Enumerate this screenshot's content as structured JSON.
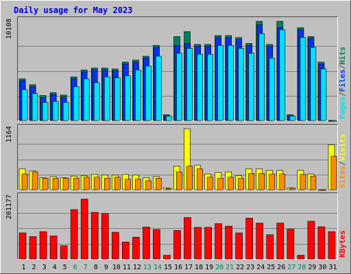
{
  "title": "Daily usage for May 2023",
  "colors": {
    "background": "#c0c0c0",
    "panel": "#c0c0c0",
    "grid": "#7f7f7f",
    "title": "#0000cc",
    "hits": "#00805c",
    "files": "#0040ff",
    "pages": "#00e0ff",
    "visits": "#ffff00",
    "sites": "#ff8c00",
    "kbytes": "#ff0000",
    "weekend_label": "#00805c",
    "weekday_label": "#000000"
  },
  "chart_data": [
    {
      "type": "bar",
      "name": "hits-files-pages",
      "ymax_label": "10108",
      "ylim": [
        0,
        10108
      ],
      "legend": [
        "Pages",
        "/",
        "Files",
        "/",
        "Hits"
      ],
      "categories": [
        "1",
        "2",
        "3",
        "4",
        "5",
        "6",
        "7",
        "8",
        "9",
        "10",
        "11",
        "12",
        "13",
        "14",
        "15",
        "16",
        "17",
        "18",
        "19",
        "20",
        "21",
        "22",
        "23",
        "24",
        "25",
        "26",
        "27",
        "28",
        "29",
        "30",
        "31"
      ],
      "weekend_days": [
        "6",
        "7",
        "13",
        "14",
        "20",
        "21",
        "27",
        "28"
      ],
      "series": [
        {
          "name": "Hits",
          "values": [
            4250,
            3650,
            2550,
            2850,
            2600,
            4450,
            5150,
            5350,
            5350,
            5250,
            5950,
            6150,
            6550,
            7650,
            600,
            8550,
            9050,
            7750,
            7750,
            8650,
            8650,
            8450,
            7850,
            10108,
            7750,
            10108,
            600,
            9450,
            8550,
            5950,
            1
          ]
        },
        {
          "name": "Files",
          "values": [
            4050,
            3450,
            2350,
            2650,
            2400,
            4250,
            4950,
            5150,
            5150,
            5050,
            5750,
            5950,
            6350,
            7450,
            450,
            7650,
            7850,
            7550,
            7550,
            8450,
            8450,
            8250,
            7650,
            9750,
            7550,
            9450,
            450,
            9250,
            8350,
            5750,
            1
          ]
        },
        {
          "name": "Pages",
          "values": [
            3150,
            2750,
            1850,
            1950,
            1850,
            3450,
            4250,
            3850,
            4450,
            4350,
            4550,
            5150,
            5550,
            6550,
            450,
            6850,
            7350,
            6750,
            6750,
            7650,
            7650,
            7350,
            6850,
            8850,
            6350,
            9250,
            450,
            8450,
            7450,
            5250,
            1
          ]
        }
      ]
    },
    {
      "type": "bar",
      "name": "visits-sites",
      "ymax_label": "1164",
      "ylim": [
        0,
        1164
      ],
      "legend": [
        "Sites",
        "/",
        "Visits"
      ],
      "categories": [
        "1",
        "2",
        "3",
        "4",
        "5",
        "6",
        "7",
        "8",
        "9",
        "10",
        "11",
        "12",
        "13",
        "14",
        "15",
        "16",
        "17",
        "18",
        "19",
        "20",
        "21",
        "22",
        "23",
        "24",
        "25",
        "26",
        "27",
        "28",
        "29",
        "30",
        "31"
      ],
      "series": [
        {
          "name": "Visits",
          "values": [
            400,
            360,
            230,
            250,
            230,
            260,
            270,
            290,
            280,
            280,
            290,
            280,
            230,
            250,
            35,
            450,
            1164,
            470,
            300,
            330,
            340,
            270,
            400,
            400,
            370,
            370,
            35,
            370,
            300,
            1,
            860
          ]
        },
        {
          "name": "Sites",
          "values": [
            300,
            340,
            220,
            220,
            220,
            220,
            240,
            240,
            220,
            240,
            200,
            200,
            170,
            220,
            25,
            340,
            450,
            400,
            240,
            220,
            240,
            220,
            310,
            310,
            300,
            300,
            30,
            290,
            260,
            1,
            640
          ]
        }
      ]
    },
    {
      "type": "bar",
      "name": "kbytes",
      "ymax_label": "201177",
      "ylim": [
        0,
        201177
      ],
      "legend": [
        "KBytes"
      ],
      "categories": [
        "1",
        "2",
        "3",
        "4",
        "5",
        "6",
        "7",
        "8",
        "9",
        "10",
        "11",
        "12",
        "13",
        "14",
        "15",
        "16",
        "17",
        "18",
        "19",
        "20",
        "21",
        "22",
        "23",
        "24",
        "25",
        "26",
        "27",
        "28",
        "29",
        "30",
        "31"
      ],
      "series": [
        {
          "name": "KBytes",
          "values": [
            85000,
            73000,
            89000,
            75000,
            43000,
            161000,
            195000,
            152000,
            148000,
            87000,
            55000,
            71000,
            104000,
            96000,
            12000,
            93000,
            135000,
            103000,
            103000,
            115000,
            107000,
            85000,
            133000,
            117000,
            79000,
            117000,
            97000,
            12000,
            123000,
            105000,
            89000
          ]
        }
      ]
    }
  ]
}
